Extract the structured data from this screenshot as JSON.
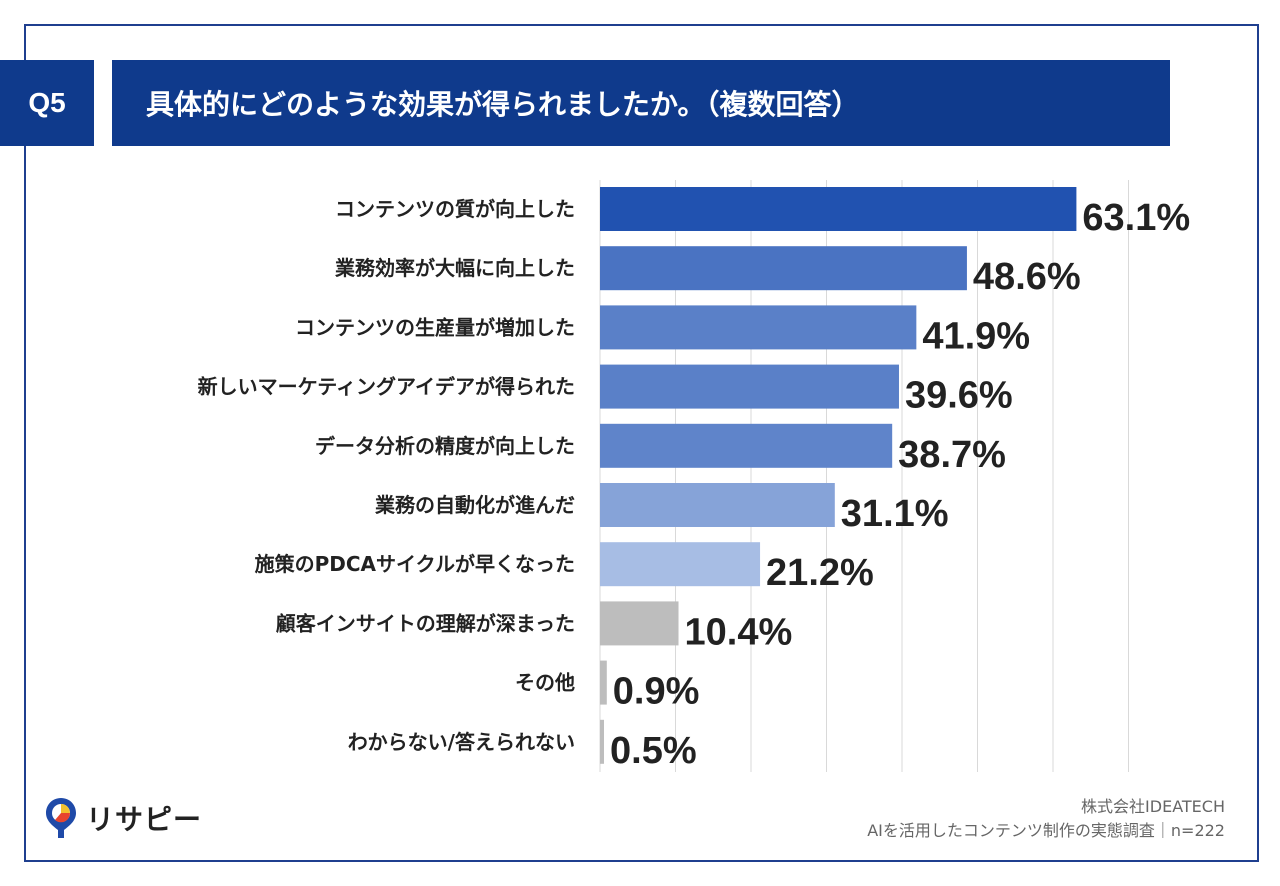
{
  "question": {
    "number": "Q5",
    "title": "具体的にどのような効果が得られましたか。（複数回答）"
  },
  "chart_data": {
    "type": "bar",
    "orientation": "horizontal",
    "categories": [
      "コンテンツの質が向上した",
      "業務効率が大幅に向上した",
      "コンテンツの生産量が増加した",
      "新しいマーケティングアイデアが得られた",
      "データ分析の精度が向上した",
      "業務の自動化が進んだ",
      "施策のPDCAサイクルが早くなった",
      "顧客インサイトの理解が深まった",
      "その他",
      "わからない/答えられない"
    ],
    "values": [
      63.1,
      48.6,
      41.9,
      39.6,
      38.7,
      31.1,
      21.2,
      10.4,
      0.9,
      0.5
    ],
    "value_labels": [
      "63.1%",
      "48.6%",
      "41.9%",
      "39.6%",
      "38.7%",
      "31.1%",
      "21.2%",
      "10.4%",
      "0.9%",
      "0.5%"
    ],
    "bar_colors": [
      "#2152b0",
      "#4a73c2",
      "#5a80c8",
      "#5a80c8",
      "#5f84ca",
      "#86a3d8",
      "#a7bde4",
      "#bdbdbd",
      "#bdbdbd",
      "#bdbdbd"
    ],
    "xlim": [
      0,
      70
    ],
    "grid_step": 10,
    "grid": true,
    "xlabel": "",
    "ylabel": ""
  },
  "logo": {
    "text": "リサピー"
  },
  "source": {
    "company": "株式会社IDEATECH",
    "survey": "AIを活用したコンテンツ制作の実態調査｜n=222"
  }
}
